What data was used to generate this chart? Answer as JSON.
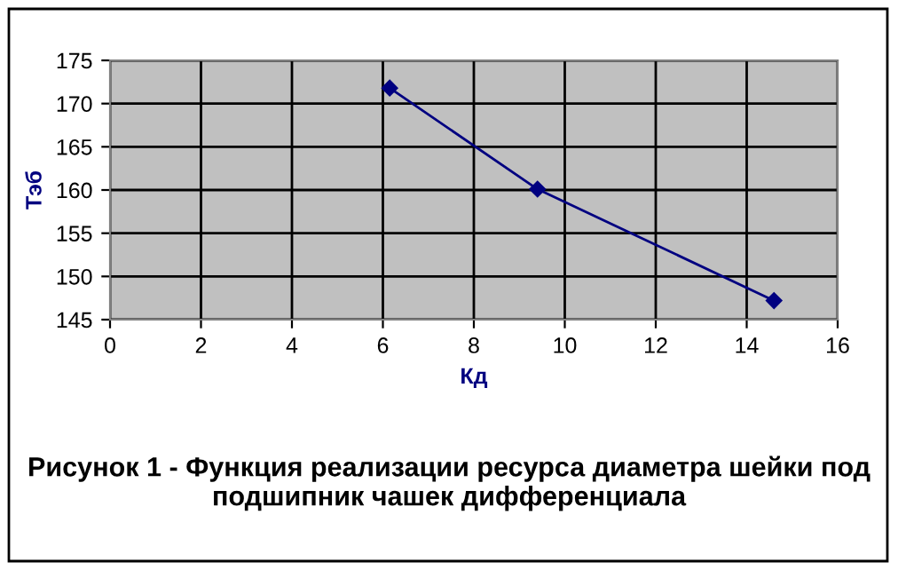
{
  "chart_data": {
    "type": "line",
    "title": "Рисунок 1 - Функция реализации ресурса диаметра шейки под подшипник чашек дифференциала",
    "xlabel": "Кд",
    "ylabel": "Тэб",
    "series": [
      {
        "color": "#000080",
        "x": [
          6.15,
          9.4,
          14.6
        ],
        "values": [
          171.8,
          160.1,
          147.2
        ]
      }
    ],
    "xlim": [
      0,
      16
    ],
    "xticks": [
      0,
      2,
      4,
      6,
      8,
      10,
      12,
      14,
      16
    ],
    "ylim": [
      145,
      175
    ],
    "yticks": [
      145,
      150,
      155,
      160,
      165,
      170,
      175
    ],
    "grid": true,
    "marker": "diamond",
    "line_style": "solid",
    "legend": false
  }
}
